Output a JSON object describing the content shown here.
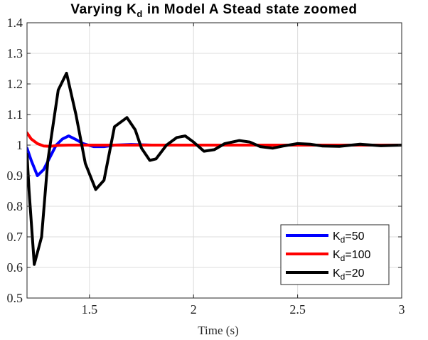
{
  "chart_data": {
    "type": "line",
    "title": {
      "pre": "Varying K",
      "sub": "d",
      "post": " in Model A Stead state zoomed"
    },
    "xlabel": "Time (s)",
    "ylabel": "",
    "xlim": [
      1.2,
      3.0
    ],
    "ylim": [
      0.5,
      1.4
    ],
    "xticks": [
      1.5,
      2,
      2.5,
      3
    ],
    "xtick_labels": [
      "1.5",
      "2",
      "2.5",
      "3"
    ],
    "yticks": [
      0.5,
      0.6,
      0.7,
      0.8,
      0.9,
      1.0,
      1.1,
      1.2,
      1.3,
      1.4
    ],
    "ytick_labels": [
      "0.5",
      "0.6",
      "0.7",
      "0.8",
      "0.9",
      "1",
      "1.1",
      "1.2",
      "1.3",
      "1.4"
    ],
    "grid": true,
    "legend_position": "bottom-right",
    "series": [
      {
        "name": "Kd=50",
        "label": {
          "pre": "K",
          "sub": "d",
          "post": "=50"
        },
        "color": "#0000ff",
        "x": [
          1.2,
          1.22,
          1.25,
          1.28,
          1.31,
          1.34,
          1.37,
          1.4,
          1.43,
          1.47,
          1.52,
          1.57,
          1.62,
          1.7,
          1.8,
          2.0,
          2.5,
          3.0
        ],
        "y": [
          0.99,
          0.95,
          0.9,
          0.92,
          0.96,
          1.0,
          1.02,
          1.03,
          1.02,
          1.005,
          0.995,
          0.995,
          1.0,
          1.002,
          1.0,
          1.0,
          1.0,
          1.0
        ]
      },
      {
        "name": "Kd=100",
        "label": {
          "pre": "K",
          "sub": "d",
          "post": "=100"
        },
        "color": "#ff0000",
        "x": [
          1.2,
          1.22,
          1.25,
          1.28,
          1.31,
          1.35,
          1.4,
          1.5,
          2.0,
          2.5,
          3.0
        ],
        "y": [
          1.04,
          1.02,
          1.005,
          0.997,
          0.996,
          0.999,
          1.0,
          1.0,
          1.0,
          1.0,
          1.0
        ]
      },
      {
        "name": "Kd=20",
        "label": {
          "pre": "K",
          "sub": "d",
          "post": "=20"
        },
        "color": "#000000",
        "x": [
          1.2,
          1.21,
          1.235,
          1.27,
          1.3,
          1.35,
          1.39,
          1.435,
          1.48,
          1.53,
          1.57,
          1.62,
          1.68,
          1.72,
          1.75,
          1.79,
          1.82,
          1.87,
          1.92,
          1.96,
          2.0,
          2.05,
          2.1,
          2.15,
          2.22,
          2.27,
          2.32,
          2.38,
          2.43,
          2.5,
          2.56,
          2.62,
          2.7,
          2.8,
          2.9,
          3.0
        ],
        "y": [
          0.97,
          0.85,
          0.61,
          0.7,
          0.95,
          1.18,
          1.235,
          1.1,
          0.94,
          0.855,
          0.885,
          1.06,
          1.09,
          1.05,
          0.99,
          0.95,
          0.955,
          1.0,
          1.025,
          1.03,
          1.01,
          0.98,
          0.985,
          1.005,
          1.015,
          1.01,
          0.995,
          0.99,
          0.997,
          1.005,
          1.003,
          0.997,
          0.996,
          1.003,
          0.998,
          1.0
        ]
      }
    ]
  }
}
